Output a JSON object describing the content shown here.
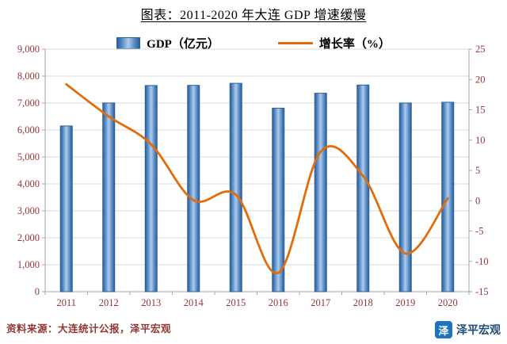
{
  "title": "图表：2011-2020 年大连 GDP 增速缓慢",
  "legend": {
    "gdp": "GDP（亿元）",
    "growth": "增长率（%）"
  },
  "footer": {
    "source": "资料来源：大连统计公报，泽平宏观",
    "brand": "泽平宏观",
    "brand_initial": "泽"
  },
  "colors": {
    "bar_border": "#2E5F98",
    "bar_dark": "#2E5F98",
    "bar_mid": "#4B83C0",
    "bar_light": "#AECBEA",
    "line": "#E36C0A",
    "axis_label": "#943634",
    "grid": "#D9D9D9",
    "axis": "#A6A6A6"
  },
  "chart_data": {
    "type": "bar+line combo",
    "title": "图表：2011-2020 年大连 GDP 增速缓慢",
    "categories": [
      "2011",
      "2012",
      "2013",
      "2014",
      "2015",
      "2016",
      "2017",
      "2018",
      "2019",
      "2020"
    ],
    "series": [
      {
        "name": "GDP（亿元）",
        "type": "bar",
        "axis": "left",
        "values": [
          6150,
          7003,
          7651,
          7656,
          7732,
          6810,
          7364,
          7669,
          7002,
          7030
        ]
      },
      {
        "name": "增长率（%）",
        "type": "line",
        "axis": "right",
        "values": [
          19.2,
          13.9,
          9.3,
          0.1,
          1.0,
          -11.9,
          8.1,
          4.1,
          -8.7,
          0.4
        ]
      }
    ],
    "left_axis": {
      "min": 0,
      "max": 9000,
      "step": 1000
    },
    "right_axis": {
      "min": -15,
      "max": 25,
      "step": 5
    },
    "grid": true,
    "legend_position": "top"
  }
}
